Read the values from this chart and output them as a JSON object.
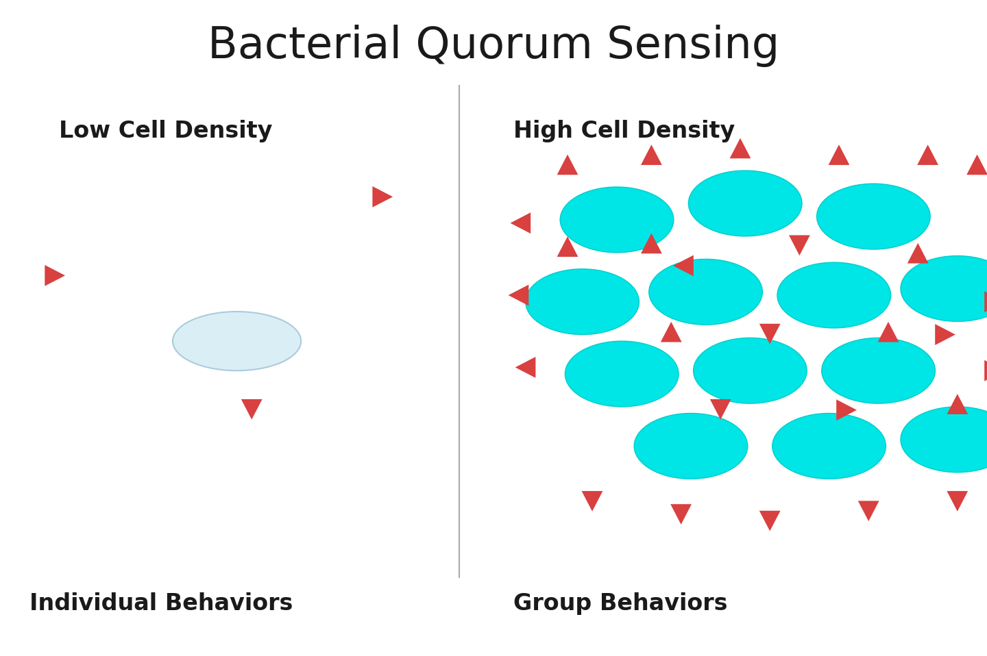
{
  "title": "Bacterial Quorum Sensing",
  "title_fontsize": 46,
  "bg_color": "#ffffff",
  "left_label": "Low Cell Density",
  "right_label": "High Cell Density",
  "bottom_left_label": "Individual Behaviors",
  "bottom_right_label": "Group Behaviors",
  "label_fontsize": 24,
  "cell_color_low": "#daeef5",
  "cell_color_high": "#00e5e5",
  "cell_edge_color_low": "#aaccdd",
  "cell_edge_color_high": "#00cccc",
  "signal_color": "#d94040",
  "divider_color": "#aaaaaa",
  "fig_w": 14.4,
  "fig_h": 9.58,
  "dpi": 100
}
